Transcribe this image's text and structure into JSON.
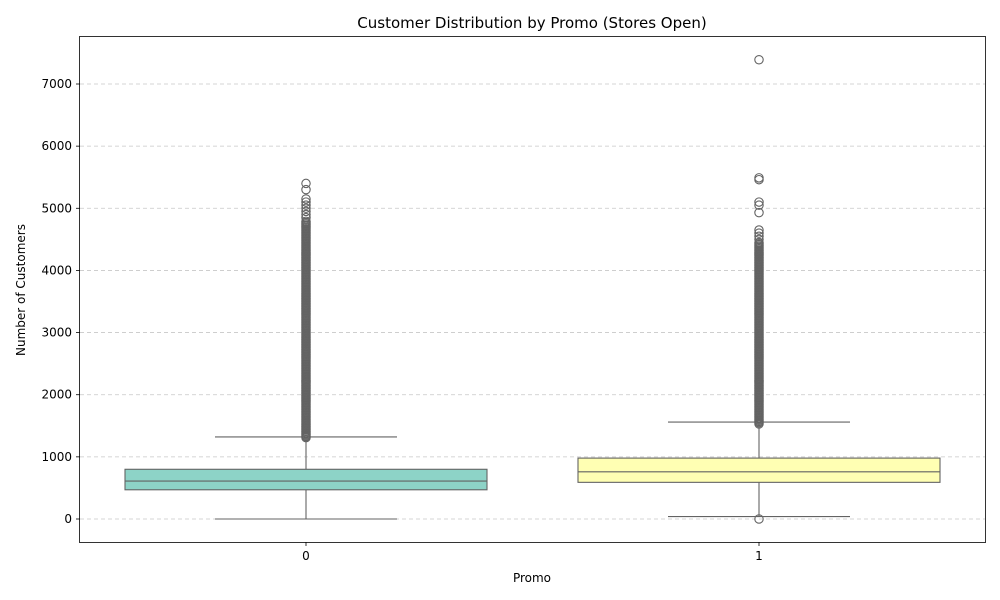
{
  "chart_data": {
    "type": "boxplot",
    "title": "Customer Distribution by Promo (Stores Open)",
    "xlabel": "Promo",
    "ylabel": "Number of Customers",
    "ylim": [
      -380,
      7750
    ],
    "yticks": [
      0,
      1000,
      2000,
      3000,
      4000,
      5000,
      6000,
      7000
    ],
    "ytick_labels": [
      "0",
      "1000",
      "2000",
      "3000",
      "4000",
      "5000",
      "6000",
      "7000"
    ],
    "grid": "y-dashed",
    "categories": [
      "0",
      "1"
    ],
    "boxes": [
      {
        "category": "0",
        "color": "#8dd3c7",
        "whisker_low": 0,
        "q1": 470,
        "median": 610,
        "q3": 800,
        "whisker_high": 1320,
        "outlier_range": [
          1310,
          4800
        ],
        "outliers": [
          4850,
          4900,
          4950,
          5000,
          5050,
          5100,
          5150,
          5300,
          5400
        ]
      },
      {
        "category": "1",
        "color": "#ffffb3",
        "whisker_low": 40,
        "q1": 590,
        "median": 760,
        "q3": 980,
        "whisker_high": 1560,
        "outlier_range": [
          1530,
          4450
        ],
        "outliers": [
          0,
          4500,
          4550,
          4600,
          4650,
          4930,
          5050,
          5100,
          5460,
          5490,
          7390
        ]
      }
    ]
  }
}
